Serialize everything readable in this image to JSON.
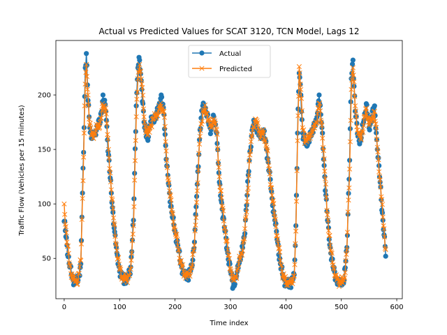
{
  "chart_data": {
    "type": "line",
    "title": "Actual vs Predicted Values for SCAT 3120, TCN Model, Lags 12",
    "xlabel": "Time index",
    "ylabel": "Traffic Flow (Vehicles per 15 minutes)",
    "xlim": [
      -15,
      610
    ],
    "ylim": [
      13,
      250
    ],
    "xticks": [
      0,
      100,
      200,
      300,
      400,
      500,
      600
    ],
    "yticks": [
      50,
      100,
      150,
      200
    ],
    "grid": false,
    "legend_position": "top-center",
    "series": [
      {
        "name": "Actual",
        "color": "#1f77b4",
        "marker": "circle",
        "anchors": [
          [
            0,
            84
          ],
          [
            5,
            62
          ],
          [
            10,
            42
          ],
          [
            15,
            32
          ],
          [
            20,
            29
          ],
          [
            25,
            30
          ],
          [
            30,
            45
          ],
          [
            33,
            110
          ],
          [
            36,
            170
          ],
          [
            38,
            225
          ],
          [
            40,
            238
          ],
          [
            43,
            195
          ],
          [
            46,
            170
          ],
          [
            50,
            160
          ],
          [
            55,
            165
          ],
          [
            60,
            172
          ],
          [
            65,
            175
          ],
          [
            70,
            200
          ],
          [
            75,
            185
          ],
          [
            80,
            145
          ],
          [
            85,
            110
          ],
          [
            90,
            78
          ],
          [
            95,
            55
          ],
          [
            100,
            38
          ],
          [
            105,
            32
          ],
          [
            110,
            30
          ],
          [
            115,
            32
          ],
          [
            120,
            42
          ],
          [
            125,
            85
          ],
          [
            130,
            190
          ],
          [
            133,
            225
          ],
          [
            136,
            232
          ],
          [
            140,
            205
          ],
          [
            145,
            170
          ],
          [
            150,
            160
          ],
          [
            155,
            172
          ],
          [
            160,
            180
          ],
          [
            165,
            178
          ],
          [
            170,
            188
          ],
          [
            175,
            200
          ],
          [
            180,
            182
          ],
          [
            185,
            135
          ],
          [
            190,
            110
          ],
          [
            195,
            88
          ],
          [
            200,
            75
          ],
          [
            205,
            62
          ],
          [
            210,
            45
          ],
          [
            215,
            38
          ],
          [
            220,
            33
          ],
          [
            225,
            35
          ],
          [
            230,
            42
          ],
          [
            235,
            65
          ],
          [
            240,
            118
          ],
          [
            245,
            168
          ],
          [
            250,
            190
          ],
          [
            255,
            188
          ],
          [
            260,
            175
          ],
          [
            265,
            168
          ],
          [
            270,
            180
          ],
          [
            275,
            165
          ],
          [
            280,
            120
          ],
          [
            285,
            95
          ],
          [
            290,
            75
          ],
          [
            295,
            55
          ],
          [
            300,
            38
          ],
          [
            305,
            24
          ],
          [
            310,
            32
          ],
          [
            315,
            45
          ],
          [
            320,
            55
          ],
          [
            325,
            70
          ],
          [
            330,
            108
          ],
          [
            335,
            148
          ],
          [
            340,
            170
          ],
          [
            345,
            175
          ],
          [
            350,
            165
          ],
          [
            355,
            160
          ],
          [
            360,
            168
          ],
          [
            365,
            150
          ],
          [
            370,
            130
          ],
          [
            375,
            105
          ],
          [
            380,
            85
          ],
          [
            385,
            65
          ],
          [
            390,
            45
          ],
          [
            395,
            32
          ],
          [
            400,
            27
          ],
          [
            405,
            26
          ],
          [
            410,
            28
          ],
          [
            415,
            35
          ],
          [
            418,
            80
          ],
          [
            421,
            165
          ],
          [
            424,
            220
          ],
          [
            427,
            200
          ],
          [
            430,
            165
          ],
          [
            435,
            155
          ],
          [
            440,
            158
          ],
          [
            445,
            162
          ],
          [
            450,
            172
          ],
          [
            455,
            175
          ],
          [
            460,
            200
          ],
          [
            465,
            170
          ],
          [
            470,
            125
          ],
          [
            475,
            85
          ],
          [
            480,
            60
          ],
          [
            485,
            42
          ],
          [
            490,
            32
          ],
          [
            495,
            28
          ],
          [
            500,
            27
          ],
          [
            505,
            30
          ],
          [
            510,
            60
          ],
          [
            515,
            140
          ],
          [
            518,
            215
          ],
          [
            521,
            232
          ],
          [
            525,
            185
          ],
          [
            530,
            162
          ],
          [
            535,
            158
          ],
          [
            540,
            175
          ],
          [
            545,
            192
          ],
          [
            550,
            170
          ],
          [
            555,
            180
          ],
          [
            560,
            190
          ],
          [
            565,
            150
          ],
          [
            570,
            120
          ],
          [
            575,
            85
          ],
          [
            580,
            52
          ]
        ]
      },
      {
        "name": "Predicted",
        "color": "#ff7f0e",
        "marker": "x",
        "anchors": [
          [
            0,
            100
          ],
          [
            5,
            65
          ],
          [
            10,
            44
          ],
          [
            15,
            32
          ],
          [
            20,
            29
          ],
          [
            25,
            30
          ],
          [
            30,
            48
          ],
          [
            33,
            105
          ],
          [
            36,
            165
          ],
          [
            38,
            210
          ],
          [
            40,
            228
          ],
          [
            43,
            200
          ],
          [
            46,
            172
          ],
          [
            50,
            163
          ],
          [
            55,
            165
          ],
          [
            60,
            170
          ],
          [
            65,
            175
          ],
          [
            70,
            190
          ],
          [
            75,
            188
          ],
          [
            80,
            150
          ],
          [
            85,
            113
          ],
          [
            90,
            82
          ],
          [
            95,
            57
          ],
          [
            100,
            40
          ],
          [
            105,
            33
          ],
          [
            110,
            31
          ],
          [
            115,
            32
          ],
          [
            120,
            40
          ],
          [
            125,
            80
          ],
          [
            130,
            180
          ],
          [
            133,
            215
          ],
          [
            136,
            228
          ],
          [
            140,
            210
          ],
          [
            145,
            175
          ],
          [
            150,
            163
          ],
          [
            155,
            170
          ],
          [
            160,
            178
          ],
          [
            165,
            180
          ],
          [
            170,
            185
          ],
          [
            175,
            190
          ],
          [
            180,
            185
          ],
          [
            185,
            140
          ],
          [
            190,
            112
          ],
          [
            195,
            92
          ],
          [
            200,
            76
          ],
          [
            205,
            62
          ],
          [
            210,
            47
          ],
          [
            215,
            38
          ],
          [
            220,
            34
          ],
          [
            225,
            35
          ],
          [
            230,
            42
          ],
          [
            235,
            62
          ],
          [
            240,
            112
          ],
          [
            245,
            162
          ],
          [
            250,
            185
          ],
          [
            255,
            186
          ],
          [
            260,
            178
          ],
          [
            265,
            170
          ],
          [
            270,
            178
          ],
          [
            275,
            168
          ],
          [
            280,
            125
          ],
          [
            285,
            98
          ],
          [
            290,
            78
          ],
          [
            295,
            58
          ],
          [
            300,
            40
          ],
          [
            305,
            30
          ],
          [
            310,
            33
          ],
          [
            315,
            45
          ],
          [
            320,
            55
          ],
          [
            325,
            68
          ],
          [
            330,
            102
          ],
          [
            335,
            145
          ],
          [
            340,
            168
          ],
          [
            345,
            178
          ],
          [
            350,
            170
          ],
          [
            355,
            162
          ],
          [
            360,
            166
          ],
          [
            365,
            152
          ],
          [
            370,
            132
          ],
          [
            375,
            108
          ],
          [
            380,
            88
          ],
          [
            385,
            68
          ],
          [
            390,
            48
          ],
          [
            395,
            34
          ],
          [
            400,
            28
          ],
          [
            405,
            27
          ],
          [
            410,
            28
          ],
          [
            415,
            34
          ],
          [
            418,
            75
          ],
          [
            421,
            158
          ],
          [
            424,
            226
          ],
          [
            427,
            205
          ],
          [
            430,
            170
          ],
          [
            435,
            158
          ],
          [
            440,
            160
          ],
          [
            445,
            163
          ],
          [
            450,
            170
          ],
          [
            455,
            175
          ],
          [
            460,
            192
          ],
          [
            465,
            172
          ],
          [
            470,
            130
          ],
          [
            475,
            90
          ],
          [
            480,
            62
          ],
          [
            485,
            44
          ],
          [
            490,
            33
          ],
          [
            495,
            29
          ],
          [
            500,
            28
          ],
          [
            505,
            30
          ],
          [
            510,
            58
          ],
          [
            515,
            132
          ],
          [
            518,
            205
          ],
          [
            521,
            225
          ],
          [
            525,
            190
          ],
          [
            530,
            165
          ],
          [
            535,
            160
          ],
          [
            540,
            172
          ],
          [
            545,
            188
          ],
          [
            550,
            172
          ],
          [
            555,
            178
          ],
          [
            560,
            185
          ],
          [
            565,
            152
          ],
          [
            570,
            122
          ],
          [
            575,
            88
          ],
          [
            580,
            58
          ]
        ]
      }
    ]
  }
}
